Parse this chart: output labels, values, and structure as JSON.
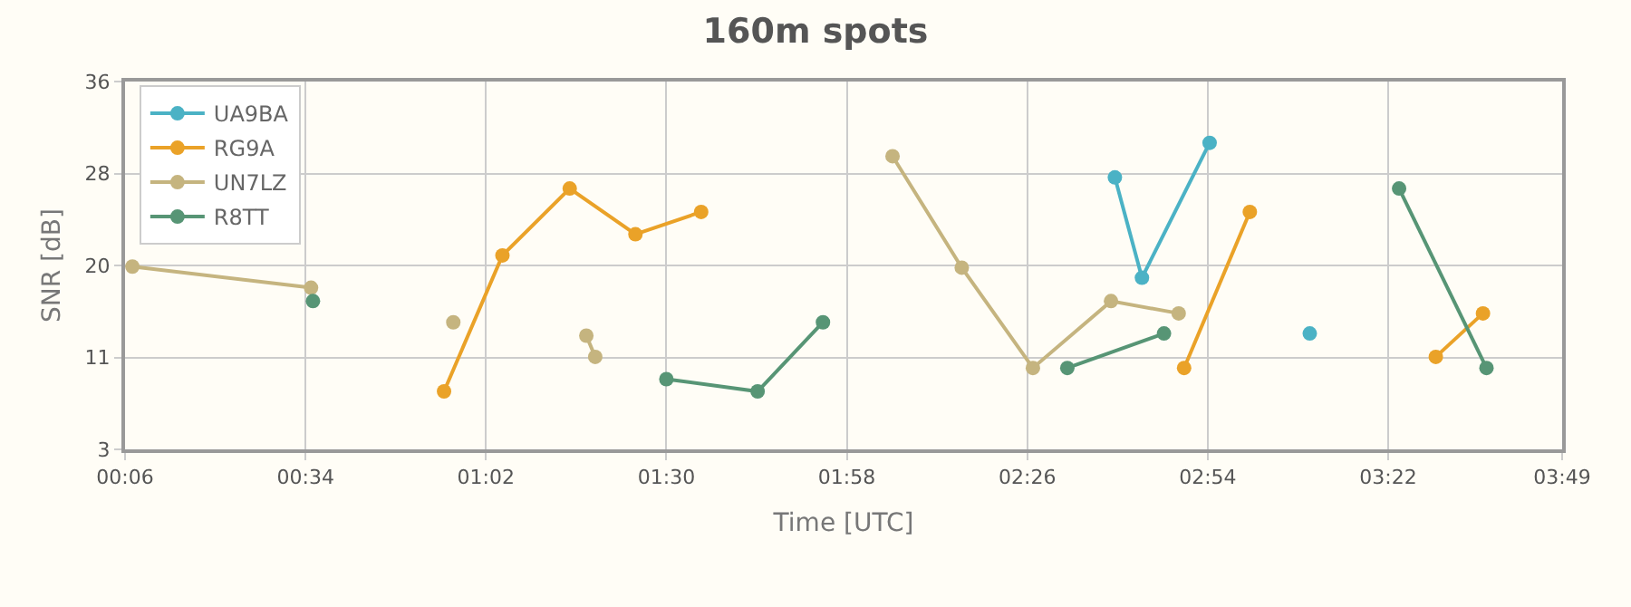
{
  "chart_data": {
    "type": "line",
    "title": "160m spots",
    "xlabel": "Time [UTC]",
    "ylabel": "SNR [dB]",
    "xlim": [
      0.1,
      3.8167
    ],
    "xticks": [
      {
        "value": 0.1,
        "label": "00:06"
      },
      {
        "value": 0.5667,
        "label": "00:34"
      },
      {
        "value": 1.0333,
        "label": "01:02"
      },
      {
        "value": 1.5,
        "label": "01:30"
      },
      {
        "value": 1.9667,
        "label": "01:58"
      },
      {
        "value": 2.4333,
        "label": "02:26"
      },
      {
        "value": 2.9,
        "label": "02:54"
      },
      {
        "value": 3.3667,
        "label": "03:22"
      },
      {
        "value": 3.8167,
        "label": "03:49"
      }
    ],
    "ylim": [
      3,
      36
    ],
    "yticks": [
      3,
      {
        "value": 11.25,
        "label": "11"
      },
      {
        "value": 19.5,
        "label": "20"
      },
      {
        "value": 27.75,
        "label": "28"
      },
      36
    ],
    "grid": true,
    "legend": "top left",
    "marker": "circle",
    "line_style": "solid",
    "series": [
      {
        "name": "UA9BA",
        "color": "#4bb2c5",
        "x": [
          2.66,
          2.73,
          2.905,
          3.0,
          3.164
        ],
        "values": [
          27.4,
          18.4,
          30.5,
          null,
          13.4
        ]
      },
      {
        "name": "RG9A",
        "color": "#eaa228",
        "x": [
          0.925,
          1.076,
          1.25,
          1.42,
          1.59,
          1.7,
          2.839,
          3.009,
          3.2,
          3.49,
          3.612
        ],
        "values": [
          8.2,
          20.4,
          26.4,
          22.3,
          24.3,
          null,
          10.3,
          24.3,
          null,
          11.3,
          15.2
        ]
      },
      {
        "name": "UN7LZ",
        "color": "#c5b47f",
        "x": [
          0.119,
          0.581,
          0.7,
          0.949,
          1.1,
          1.293,
          1.316,
          1.7,
          2.085,
          2.264,
          2.448,
          2.65,
          2.825
        ],
        "values": [
          19.4,
          17.5,
          null,
          14.4,
          null,
          13.2,
          11.3,
          null,
          29.3,
          19.3,
          10.3,
          16.3,
          15.2
        ]
      },
      {
        "name": "R8TT",
        "color": "#579575",
        "x": [
          0.586,
          1.0,
          1.5,
          1.736,
          1.905,
          2.2,
          2.537,
          2.787,
          3.0,
          3.395,
          3.621
        ],
        "values": [
          16.3,
          null,
          9.3,
          8.2,
          14.4,
          null,
          10.3,
          13.4,
          null,
          26.4,
          10.3
        ]
      }
    ]
  }
}
